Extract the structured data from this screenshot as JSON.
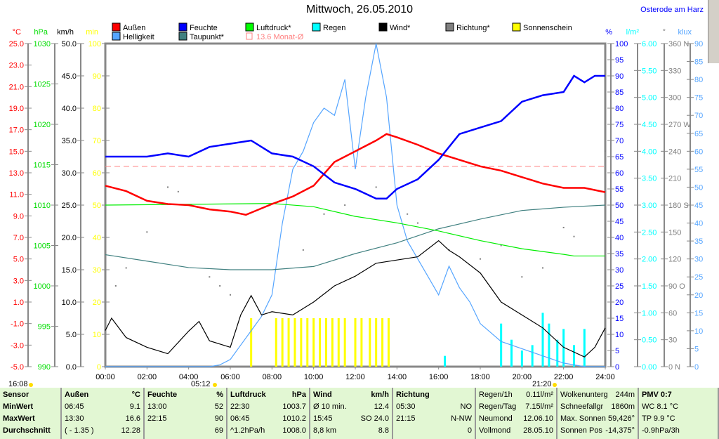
{
  "header": {
    "title": "Mittwoch, 26.05.2010",
    "location": "Osterode am Harz"
  },
  "legend": [
    {
      "label": "Außen",
      "color": "#ff0000"
    },
    {
      "label": "Feuchte",
      "color": "#0000ff"
    },
    {
      "label": "Luftdruck*",
      "color": "#00ff00"
    },
    {
      "label": "Regen",
      "color": "#00ffff"
    },
    {
      "label": "Wind*",
      "color": "#000000"
    },
    {
      "label": "Richtung*",
      "color": "#808080"
    },
    {
      "label": "Sonnenschein",
      "color": "#ffff00"
    },
    {
      "label": "Helligkeit",
      "color": "#55a5ff"
    },
    {
      "label": "Taupunkt*",
      "color": "#408080"
    },
    {
      "label": "13.6 Monat-Ø",
      "color": "#ff8080"
    }
  ],
  "sun_times": {
    "sunset_prev": "16:08",
    "sunrise": "05:12",
    "sunset": "21:20"
  },
  "chart_data": {
    "type": "line",
    "title": "Mittwoch, 26.05.2010",
    "x_ticks": [
      "00:00",
      "02:00",
      "04:00",
      "06:00",
      "08:00",
      "10:00",
      "12:00",
      "14:00",
      "16:00",
      "18:00",
      "20:00",
      "22:00",
      "24:00"
    ],
    "xlim": [
      0,
      24
    ],
    "axes": [
      {
        "unit": "°C",
        "color": "#ff0000",
        "range": [
          -5,
          25
        ],
        "ticks": [
          "25.0",
          "23.0",
          "21.0",
          "19.0",
          "17.0",
          "15.0",
          "13.0",
          "11.0",
          "9.0",
          "7.0",
          "5.0",
          "3.0",
          "1.0",
          "-1.0",
          "-3.0",
          "-5.0"
        ]
      },
      {
        "unit": "hPa",
        "color": "#00dd00",
        "range": [
          990,
          1030
        ],
        "ticks": [
          "1030",
          "1025",
          "1020",
          "1015",
          "1010",
          "1005",
          "1000",
          "995",
          "990"
        ]
      },
      {
        "unit": "km/h",
        "color": "#000000",
        "range": [
          0,
          50
        ],
        "ticks": [
          "50.0",
          "45.0",
          "40.0",
          "35.0",
          "30.0",
          "25.0",
          "20.0",
          "15.0",
          "10.0",
          "5.0",
          "0.0"
        ]
      },
      {
        "unit": "min",
        "color": "#ffff00",
        "range": [
          0,
          100
        ],
        "ticks": [
          "100",
          "90",
          "80",
          "70",
          "60",
          "50",
          "40",
          "30",
          "20",
          "10",
          "0"
        ]
      },
      {
        "unit": "%",
        "color": "#0000ff",
        "range": [
          0,
          100
        ],
        "ticks": [
          "100",
          "95",
          "90",
          "85",
          "80",
          "75",
          "70",
          "65",
          "60",
          "55",
          "50",
          "45",
          "40",
          "35",
          "30",
          "25",
          "20",
          "15",
          "10",
          "5",
          "0"
        ]
      },
      {
        "unit": "l/m²",
        "color": "#00ffff",
        "range": [
          0,
          6
        ],
        "ticks": [
          "6.00",
          "5.50",
          "5.00",
          "4.50",
          "4.00",
          "3.50",
          "3.00",
          "2.50",
          "2.00",
          "1.50",
          "1.00",
          "0.50",
          "0.00"
        ]
      },
      {
        "unit": "°",
        "color": "#808080",
        "range": [
          0,
          360
        ],
        "ticks": [
          "360 N",
          "330",
          "300",
          "270 W",
          "240",
          "210",
          "180 S",
          "150",
          "120",
          "90  O",
          "60",
          "30",
          "0    N"
        ]
      },
      {
        "unit": "klux",
        "color": "#55a5ff",
        "range": [
          0,
          90
        ],
        "ticks": [
          "90",
          "85",
          "80",
          "75",
          "70",
          "65",
          "60",
          "55",
          "50",
          "45",
          "40",
          "35",
          "30",
          "25",
          "20",
          "15",
          "10",
          "5",
          "0"
        ]
      }
    ],
    "monthly_avg_temp": 13.6,
    "series": [
      {
        "name": "Feuchte",
        "unit": "%",
        "color": "#0000ff",
        "x": [
          0,
          1,
          2,
          3,
          4,
          5,
          6,
          7,
          8,
          9,
          10,
          11,
          12,
          13,
          13.5,
          14,
          15,
          16,
          17,
          18,
          19,
          20,
          21,
          22,
          22.5,
          23,
          23.5,
          24
        ],
        "y": [
          65,
          65,
          65,
          66,
          65,
          68,
          69,
          70,
          66,
          65,
          62,
          57,
          55,
          52,
          52,
          55,
          58,
          64,
          72,
          74,
          76,
          82,
          84,
          85,
          90,
          88,
          90,
          90
        ]
      },
      {
        "name": "Außen",
        "unit": "°C",
        "color": "#ff0000",
        "x": [
          0,
          1,
          2,
          3,
          4,
          5,
          6,
          6.75,
          7,
          8,
          9,
          10,
          11,
          12,
          13,
          13.5,
          14,
          15,
          16,
          17,
          18,
          19,
          20,
          21,
          22,
          23,
          24
        ],
        "y": [
          11.8,
          11.3,
          10.4,
          10.1,
          10.0,
          9.6,
          9.4,
          9.1,
          9.3,
          10.1,
          10.8,
          11.8,
          14.0,
          15.0,
          16.0,
          16.6,
          16.3,
          15.6,
          14.8,
          14.2,
          13.6,
          13.2,
          12.6,
          12.0,
          11.6,
          11.6,
          11.2
        ]
      },
      {
        "name": "Luftdruck",
        "unit": "hPa",
        "color": "#00ee00",
        "x": [
          0,
          4,
          8,
          10,
          12,
          14,
          16,
          18,
          20,
          22,
          22.5,
          24
        ],
        "y": [
          1010.0,
          1010.1,
          1010.2,
          1009.8,
          1008.6,
          1007.8,
          1006.8,
          1005.6,
          1004.6,
          1003.9,
          1003.7,
          1003.7
        ]
      },
      {
        "name": "Taupunkt",
        "unit": "°C",
        "color": "#408080",
        "x": [
          0,
          2,
          4,
          6,
          8,
          10,
          12,
          14,
          16,
          18,
          20,
          22,
          24
        ],
        "y": [
          5.4,
          4.8,
          4.2,
          4.0,
          4.0,
          4.3,
          5.5,
          6.5,
          7.8,
          8.7,
          9.5,
          9.8,
          10.0
        ]
      },
      {
        "name": "Helligkeit",
        "unit": "klux",
        "color": "#55a5ff",
        "x": [
          0,
          5,
          5.5,
          6,
          6.5,
          7,
          7.5,
          8,
          8.5,
          9,
          9.5,
          10,
          10.5,
          11,
          11.5,
          12,
          12.5,
          13,
          13.5,
          14,
          14.5,
          15,
          15.5,
          16,
          16.5,
          17,
          17.5,
          18,
          19,
          20,
          21,
          22,
          23,
          24
        ],
        "y": [
          0,
          0,
          0.5,
          2,
          6,
          10,
          14,
          20,
          40,
          55,
          60,
          68,
          72,
          70,
          80,
          55,
          75,
          90,
          75,
          45,
          35,
          30,
          25,
          20,
          28,
          22,
          18,
          12,
          7,
          5,
          3,
          1,
          0,
          0
        ]
      },
      {
        "name": "Wind",
        "unit": "km/h",
        "color": "#000000",
        "x": [
          0,
          0.3,
          1,
          2,
          3,
          4,
          4.5,
          5,
          6,
          6.5,
          7,
          7.5,
          8,
          9,
          10,
          11,
          12,
          13,
          14,
          15,
          16,
          16.5,
          17,
          18,
          19,
          20,
          21,
          22,
          23,
          23.5,
          24
        ],
        "y": [
          5.6,
          7.5,
          4.5,
          3,
          2,
          5.5,
          7,
          4,
          3,
          8,
          11,
          8,
          8.5,
          8,
          10,
          12.5,
          14,
          16,
          16.5,
          17,
          19.5,
          18,
          17,
          14.5,
          10,
          8,
          6,
          3,
          1.5,
          3,
          6
        ]
      },
      {
        "name": "Regen",
        "unit": "l/m²",
        "type": "bar",
        "color": "#00ffff",
        "x": [
          16.3,
          19,
          19.5,
          20,
          20.5,
          21,
          21.3,
          21.7,
          22,
          22.5,
          23
        ],
        "y": [
          0.2,
          0.8,
          0.5,
          0.3,
          0.4,
          1.0,
          0.8,
          0.5,
          0.7,
          0.4,
          0.7
        ]
      },
      {
        "name": "Sonnenschein",
        "unit": "min",
        "type": "bar",
        "color": "#ffff00",
        "x": [
          7.0,
          8.2,
          8.5,
          8.8,
          9.1,
          9.4,
          9.7,
          10.0,
          10.3,
          10.6,
          10.9,
          11.2,
          11.5,
          12.0,
          12.3,
          12.7,
          13.0,
          13.3,
          13.6
        ],
        "y": [
          15,
          15,
          15,
          15,
          15,
          15,
          15,
          15,
          15,
          15,
          15,
          15,
          15,
          15,
          15,
          15,
          15,
          15,
          15
        ]
      },
      {
        "name": "Richtung",
        "unit": "°",
        "type": "scatter",
        "color": "#808080",
        "x": [
          0.5,
          1,
          2,
          3,
          3.5,
          5,
          5.5,
          6,
          9.5,
          10.5,
          11.5,
          13,
          14.5,
          15,
          16.5,
          18,
          19,
          20,
          21,
          22,
          22.5,
          24
        ],
        "y": [
          90,
          110,
          150,
          200,
          195,
          100,
          90,
          80,
          130,
          170,
          180,
          200,
          170,
          160,
          130,
          120,
          135,
          100,
          110,
          155,
          145,
          240
        ]
      }
    ]
  },
  "table": {
    "columns": [
      {
        "h": [
          "Sensor",
          ""
        ],
        "rows": [
          [
            "MinWert",
            ""
          ],
          [
            "MaxWert",
            ""
          ],
          [
            "Durchschnitt",
            ""
          ]
        ]
      },
      {
        "h": [
          "Außen",
          "°C"
        ],
        "rows": [
          [
            "06:45",
            "9.1"
          ],
          [
            "13:30",
            "16.6"
          ],
          [
            "( - 1.35 )",
            "12.28"
          ]
        ]
      },
      {
        "h": [
          "Feuchte",
          "%"
        ],
        "rows": [
          [
            "13:00",
            "52"
          ],
          [
            "22:15",
            "90"
          ],
          [
            "",
            "69"
          ]
        ]
      },
      {
        "h": [
          "Luftdruck",
          "hPa"
        ],
        "rows": [
          [
            "22:30",
            "1003.7"
          ],
          [
            "06:45",
            "1010.2"
          ],
          [
            "^1.2hPa/h",
            "1008.0"
          ]
        ]
      },
      {
        "h": [
          "Wind",
          "km/h"
        ],
        "rows": [
          [
            "Ø 10 min.",
            "12.4"
          ],
          [
            "15:45",
            "SO 24.0"
          ],
          [
            "8,8 km",
            "8.8"
          ]
        ]
      },
      {
        "h": [
          "Richtung",
          ""
        ],
        "rows": [
          [
            "05:30",
            "NO"
          ],
          [
            "21:15",
            "N-NW"
          ],
          [
            "",
            "0"
          ]
        ]
      },
      {
        "h": [
          "Regen/1h",
          "0.11l/m²"
        ],
        "rows": [
          [
            "Regen/Tag",
            "7.15l/m²"
          ],
          [
            "Neumond",
            "12.06.10"
          ],
          [
            "Vollmond",
            "28.05.10"
          ]
        ]
      },
      {
        "h": [
          "Wolkenunterg",
          "244m"
        ],
        "rows": [
          [
            "Schneefallgr",
            "1860m"
          ],
          [
            "Max. Sonnen",
            "59,426°"
          ],
          [
            "Sonnen Pos",
            "-14,375°"
          ]
        ]
      },
      {
        "h": [
          "PMV 0:7",
          ""
        ],
        "rows": [
          [
            "WC 8.1 °C",
            ""
          ],
          [
            "TP 9.9 °C",
            ""
          ],
          [
            "-0.9hPa/3h",
            ""
          ]
        ]
      }
    ]
  }
}
